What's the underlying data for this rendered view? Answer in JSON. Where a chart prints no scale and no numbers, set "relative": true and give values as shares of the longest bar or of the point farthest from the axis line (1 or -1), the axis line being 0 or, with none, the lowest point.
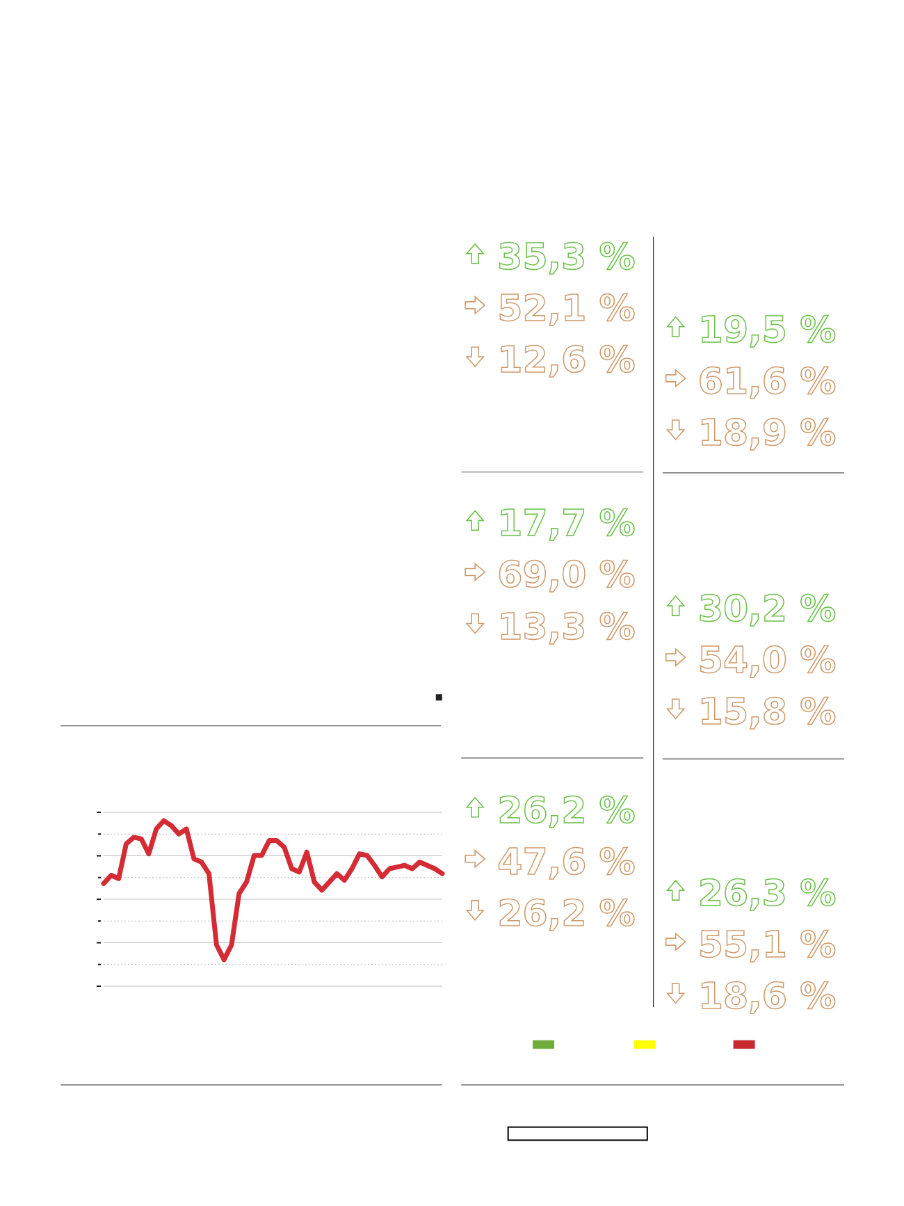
{
  "chart_data": [
    {
      "type": "line",
      "relative": true,
      "grid": "y",
      "categories": [
        null,
        null,
        null,
        null,
        null,
        null,
        null,
        null,
        null,
        null,
        null,
        null,
        null,
        null,
        null,
        null,
        null,
        null,
        null,
        null,
        null,
        null,
        null,
        null,
        null,
        null,
        null,
        null,
        null,
        null,
        null,
        null,
        null,
        null,
        null,
        null,
        null,
        null,
        null,
        null,
        null,
        null,
        null,
        null,
        null,
        null
      ],
      "series": [
        {
          "color": "#d42b34",
          "values": [
            0.62,
            0.67,
            0.65,
            0.86,
            0.9,
            0.89,
            0.8,
            0.95,
            1,
            0.97,
            0.92,
            0.95,
            0.77,
            0.75,
            0.68,
            0.25,
            0.16,
            0.25,
            0.56,
            0.63,
            0.79,
            0.79,
            0.88,
            0.88,
            0.84,
            0.71,
            0.69,
            0.81,
            0.63,
            0.58,
            0.63,
            0.68,
            0.64,
            0.71,
            0.8,
            0.79,
            0.73,
            0.66,
            0.71,
            0.72,
            0.73,
            0.71,
            0.75,
            0.73,
            0.71,
            0.68
          ]
        }
      ]
    },
    {
      "type": "other",
      "annotations": [
        "35,3 %",
        "52,1 %",
        "12,6 %",
        "19,5 %",
        "61,6 %",
        "18,9 %",
        "17,7 %",
        "69,0 %",
        "13,3 %",
        "30,2 %",
        "54,0 %",
        "15,8 %",
        "26,2 %",
        "47,6 %",
        "26,2 %",
        "26,3 %",
        "55,1 %",
        "18,6 %"
      ]
    }
  ]
}
